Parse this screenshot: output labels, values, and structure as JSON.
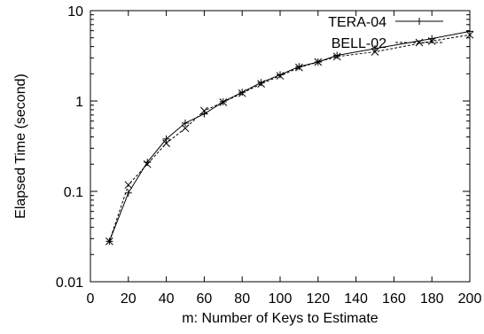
{
  "chart_data": {
    "type": "line",
    "xlabel": "m: Number of Keys to Estimate",
    "ylabel": "Elapsed Time (second)",
    "xlim": [
      0,
      200
    ],
    "ylim": [
      0.01,
      10
    ],
    "y_scale": "log",
    "x_ticks": [
      0,
      20,
      40,
      60,
      80,
      100,
      120,
      140,
      160,
      180,
      200
    ],
    "y_ticks": [
      0.01,
      0.1,
      1,
      10
    ],
    "y_tick_labels": [
      "0.01",
      "0.1",
      "1",
      "10"
    ],
    "grid": false,
    "legend_position": "top-right",
    "series": [
      {
        "name": "TERA-04",
        "line_style": "solid",
        "marker": "plus",
        "x": [
          10,
          20,
          30,
          40,
          50,
          60,
          70,
          80,
          90,
          100,
          110,
          120,
          130,
          150,
          180,
          200
        ],
        "y": [
          0.028,
          0.096,
          0.21,
          0.38,
          0.57,
          0.72,
          0.98,
          1.25,
          1.6,
          1.95,
          2.4,
          2.7,
          3.2,
          3.8,
          4.9,
          5.9
        ]
      },
      {
        "name": "BELL-02",
        "line_style": "dashed",
        "marker": "cross",
        "x": [
          10,
          20,
          30,
          40,
          50,
          60,
          70,
          80,
          90,
          100,
          110,
          120,
          130,
          150,
          180,
          200
        ],
        "y": [
          0.028,
          0.118,
          0.2,
          0.34,
          0.5,
          0.78,
          0.97,
          1.22,
          1.55,
          1.9,
          2.35,
          2.7,
          3.1,
          3.5,
          4.6,
          5.4
        ]
      }
    ]
  }
}
